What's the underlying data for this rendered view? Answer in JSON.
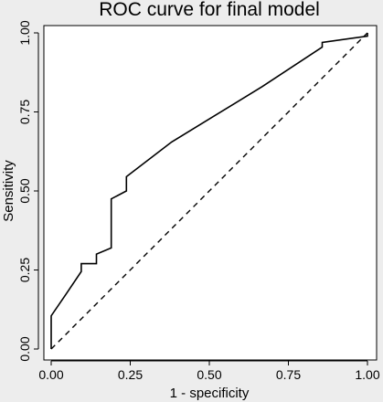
{
  "chart_data": {
    "type": "line",
    "title": "ROC curve for final model",
    "xlabel": "1 - specificity",
    "ylabel": "Sensitivity",
    "xlim": [
      0,
      1
    ],
    "ylim": [
      0,
      1
    ],
    "x_ticks": [
      "0.00",
      "0.25",
      "0.50",
      "0.75",
      "1.00"
    ],
    "y_ticks": [
      "0.00",
      "0.25",
      "0.50",
      "0.75",
      "1.00"
    ],
    "grid": false,
    "legend": "none",
    "series": [
      {
        "style": "solid",
        "x": [
          0.0,
          0.0,
          0.048,
          0.095,
          0.095,
          0.143,
          0.143,
          0.19,
          0.19,
          0.238,
          0.238,
          0.381,
          0.667,
          0.857,
          0.857,
          1.0,
          1.0
        ],
        "y": [
          0.0,
          0.105,
          0.175,
          0.245,
          0.27,
          0.27,
          0.3,
          0.32,
          0.475,
          0.5,
          0.545,
          0.655,
          0.83,
          0.955,
          0.97,
          0.99,
          1.0
        ]
      },
      {
        "style": "dashed",
        "x": [
          0,
          1
        ],
        "y": [
          0,
          1
        ]
      }
    ]
  }
}
